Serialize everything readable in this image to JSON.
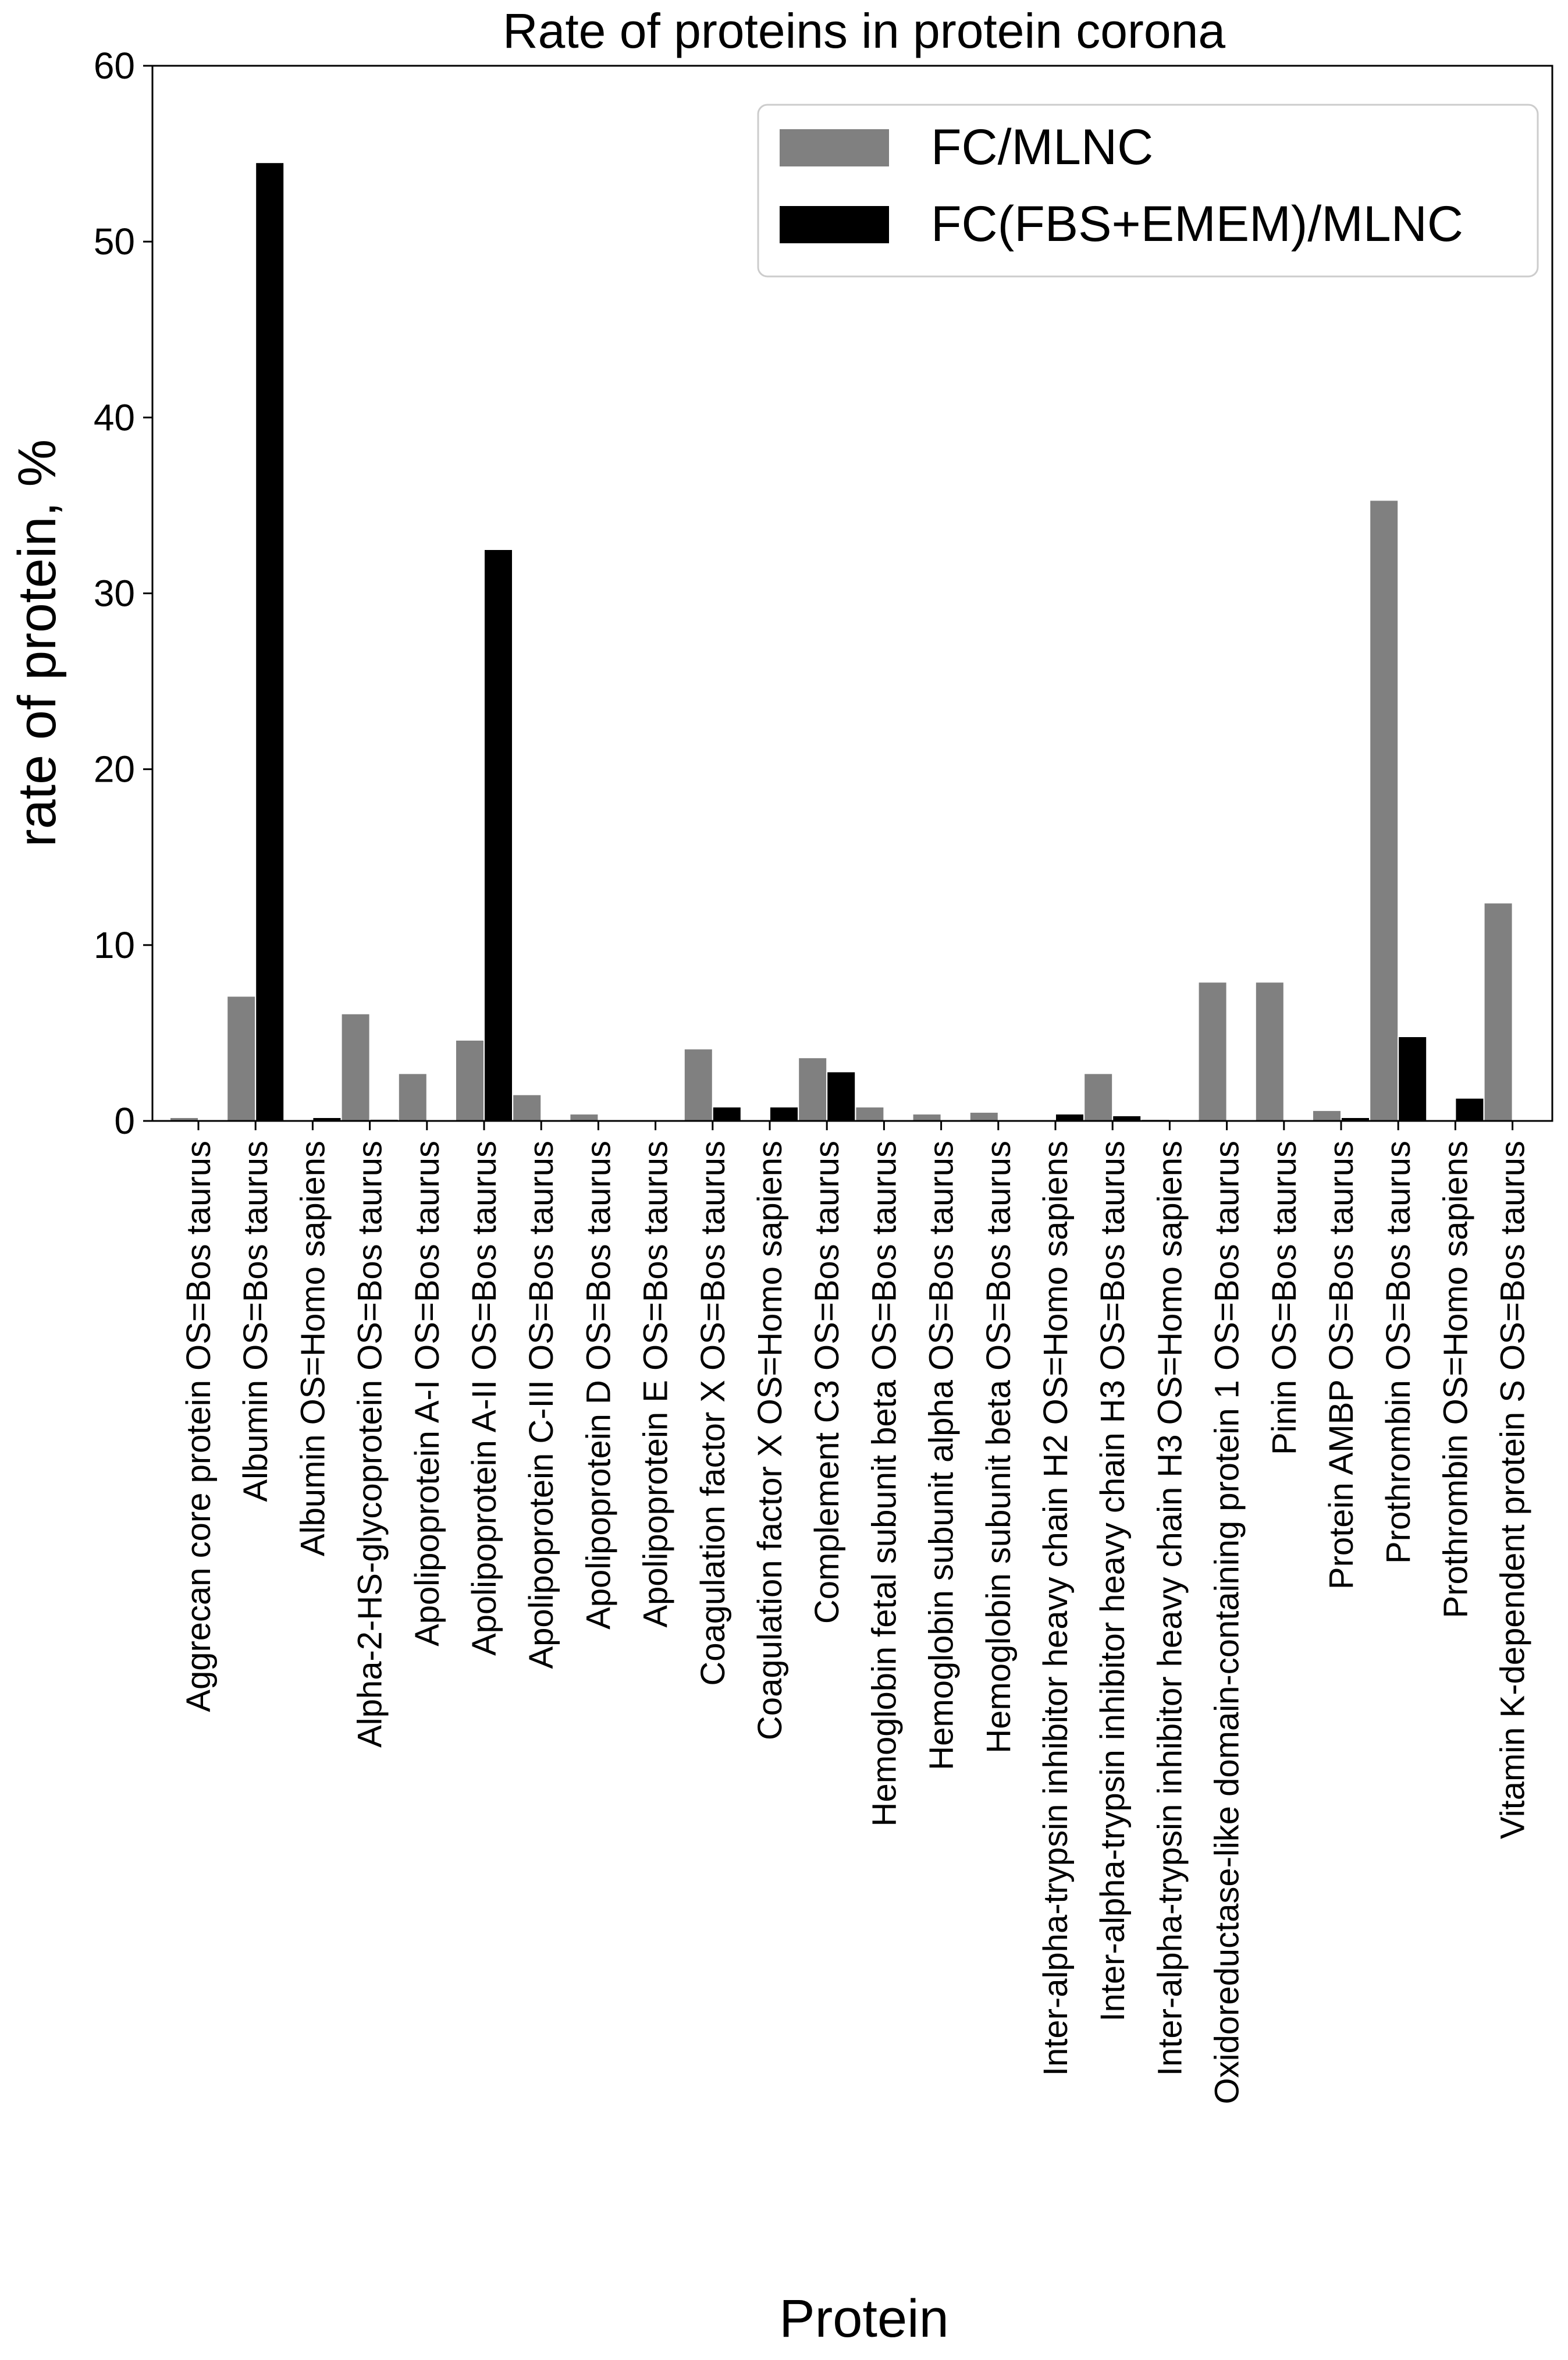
{
  "chart_data": {
    "type": "bar",
    "title": "Rate of proteins in protein corona",
    "xlabel": "Protein",
    "ylabel": "rate of protein, %",
    "ylim": [
      0,
      60
    ],
    "yticks": [
      0,
      10,
      20,
      30,
      40,
      50,
      60
    ],
    "grid": false,
    "legend_position": "top-right",
    "categories": [
      "Aggrecan core protein OS=Bos taurus",
      "Albumin OS=Bos taurus",
      "Albumin OS=Homo sapiens",
      "Alpha-2-HS-glycoprotein OS=Bos taurus",
      "Apolipoprotein A-I OS=Bos taurus",
      "Apolipoprotein A-II OS=Bos taurus",
      "Apolipoprotein C-III OS=Bos taurus",
      "Apolipoprotein D OS=Bos taurus",
      "Apolipoprotein E OS=Bos taurus",
      "Coagulation factor X OS=Bos taurus",
      "Coagulation factor X OS=Homo sapiens",
      "Complement C3 OS=Bos taurus",
      "Hemoglobin fetal subunit beta OS=Bos taurus",
      "Hemoglobin subunit alpha OS=Bos taurus",
      "Hemoglobin subunit beta OS=Bos taurus",
      "Inter-alpha-trypsin inhibitor heavy chain H2 OS=Homo sapiens",
      "Inter-alpha-trypsin inhibitor heavy chain H3 OS=Bos taurus",
      "Inter-alpha-trypsin inhibitor heavy chain H3 OS=Homo sapiens",
      "Oxidoreductase-like domain-containing protein 1 OS=Bos taurus",
      "Pinin OS=Bos taurus",
      "Protein AMBP OS=Bos taurus",
      "Prothrombin OS=Bos taurus",
      "Prothrombin OS=Homo sapiens",
      "Vitamin K-dependent protein S OS=Bos taurus"
    ],
    "series": [
      {
        "name": "FC/MLNC",
        "color": "#808080",
        "values": [
          0.2,
          7.1,
          0,
          6.1,
          2.7,
          4.6,
          1.5,
          0.4,
          0,
          4.1,
          0,
          3.6,
          0.8,
          0.4,
          0.5,
          0,
          2.7,
          0.1,
          7.9,
          7.9,
          0.6,
          35.3,
          0,
          12.4
        ]
      },
      {
        "name": "FC(FBS+EMEM)/MLNC",
        "color": "#000000",
        "values": [
          0,
          54.5,
          0.2,
          0.1,
          0,
          32.5,
          0,
          0,
          0,
          0.8,
          0.8,
          2.8,
          0,
          0,
          0,
          0.4,
          0.3,
          0,
          0,
          0,
          0.2,
          4.8,
          1.3,
          0
        ]
      }
    ]
  }
}
